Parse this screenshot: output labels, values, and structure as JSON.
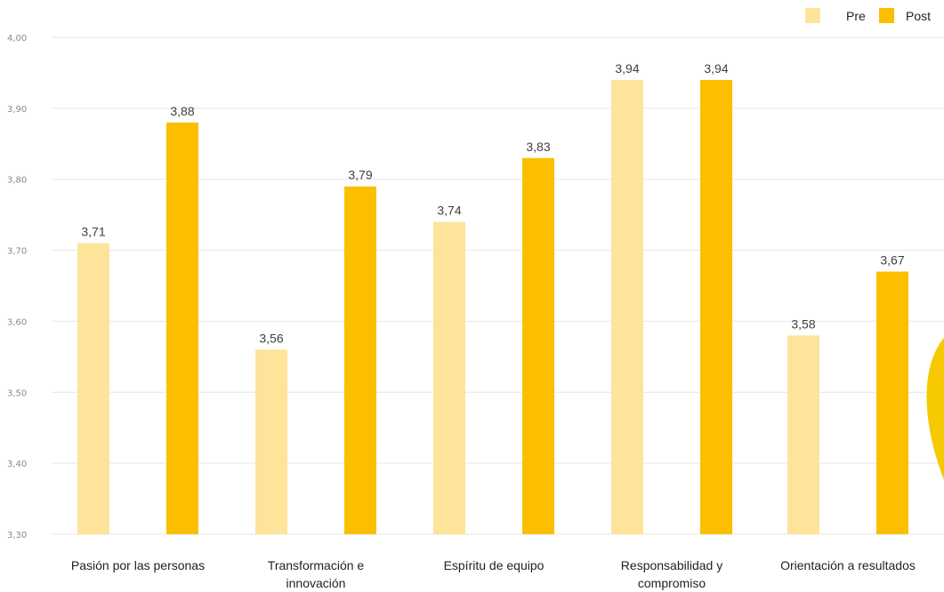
{
  "chart_data": {
    "type": "bar",
    "categories": [
      [
        "Pasión por las personas"
      ],
      [
        "Transformación e",
        "innovación"
      ],
      [
        "Espíritu de equipo"
      ],
      [
        "Responsabilidad y",
        "compromiso"
      ],
      [
        "Orientación a resultados"
      ]
    ],
    "series": [
      {
        "name": "Pre",
        "color": "#FDE49A",
        "values": [
          3.71,
          3.56,
          3.74,
          3.94,
          3.58
        ],
        "labels": [
          "3,71",
          "3,56",
          "3,74",
          "3,94",
          "3,58"
        ]
      },
      {
        "name": "Post",
        "color": "#FBBF00",
        "values": [
          3.88,
          3.79,
          3.83,
          3.94,
          3.67
        ],
        "labels": [
          "3,88",
          "3,79",
          "3,83",
          "3,94",
          "3,67"
        ]
      }
    ],
    "ylim": [
      3.3,
      4.0
    ],
    "yticks": [
      "3,30",
      "3,40",
      "3,50",
      "3,60",
      "3,70",
      "3,80",
      "3,90",
      "4,00"
    ],
    "grid": true,
    "legend_position": "top-right",
    "decoration_color": "#F6C800"
  }
}
